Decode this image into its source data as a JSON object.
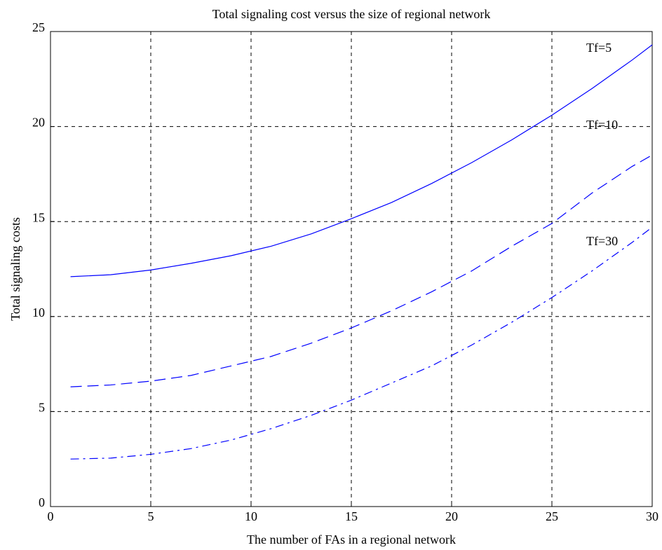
{
  "chart_data": {
    "type": "line",
    "title": "Total signaling cost versus the size of regional network",
    "x_label": "The number of FAs in a regional network",
    "y_label": "Total signaling costs",
    "x": [
      1,
      3,
      5,
      7,
      9,
      11,
      13,
      15,
      17,
      19,
      21,
      23,
      25,
      27,
      29,
      30
    ],
    "series": [
      {
        "name": "Tf=5",
        "color": "#0000ff",
        "style": "solid",
        "values": [
          12.1,
          12.2,
          12.45,
          12.8,
          13.2,
          13.7,
          14.35,
          15.15,
          16.0,
          17.0,
          18.1,
          19.3,
          20.6,
          22.0,
          23.5,
          24.3
        ]
      },
      {
        "name": "Tf=10",
        "color": "#0000ff",
        "style": "dashed",
        "values": [
          6.3,
          6.4,
          6.6,
          6.9,
          7.4,
          7.9,
          8.6,
          9.4,
          10.3,
          11.3,
          12.4,
          13.7,
          14.9,
          16.5,
          17.9,
          18.5
        ]
      },
      {
        "name": "Tf=30",
        "color": "#0000ff",
        "style": "dashdot",
        "values": [
          2.5,
          2.55,
          2.75,
          3.05,
          3.5,
          4.1,
          4.8,
          5.6,
          6.5,
          7.4,
          8.5,
          9.7,
          11.0,
          12.4,
          13.9,
          14.7
        ]
      }
    ],
    "xlim": [
      0,
      30
    ],
    "xticks": [
      0,
      5,
      10,
      15,
      20,
      25,
      30
    ],
    "ylim": [
      0,
      25
    ],
    "yticks": [
      0,
      5,
      10,
      15,
      20,
      25
    ],
    "grid": true
  }
}
